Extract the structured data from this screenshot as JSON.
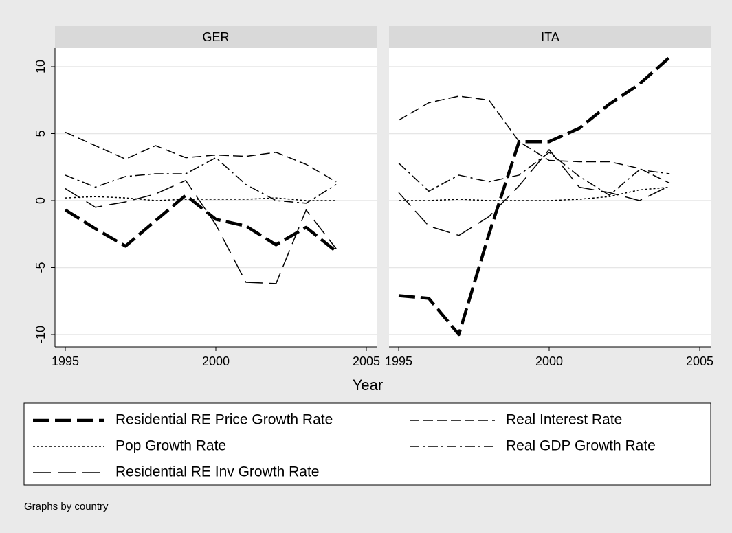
{
  "chart_data": [
    {
      "type": "line",
      "title": "GER",
      "x_label": "Year",
      "note": "Graphs by country",
      "x": [
        1995,
        1996,
        1997,
        1998,
        1999,
        2000,
        2001,
        2002,
        2003,
        2004
      ],
      "xlim": [
        1995,
        2005
      ],
      "xticks": [
        1995,
        2000,
        2005
      ],
      "ylim": [
        -10,
        10
      ],
      "yticks": [
        -10,
        -5,
        0,
        5,
        10
      ],
      "grid": true,
      "series": [
        {
          "name": "Residential RE Price Growth Rate",
          "color": "#000000",
          "values": [
            -0.7,
            -2.1,
            -3.4,
            -1.5,
            0.4,
            -1.4,
            -1.9,
            -3.3,
            -2.0,
            -3.8
          ]
        },
        {
          "name": "Real Interest Rate",
          "color": "#000000",
          "values": [
            5.1,
            4.1,
            3.1,
            4.1,
            3.2,
            3.4,
            3.3,
            3.6,
            2.7,
            1.4
          ]
        },
        {
          "name": "Pop Growth Rate",
          "color": "#000000",
          "values": [
            0.2,
            0.3,
            0.2,
            0.0,
            0.1,
            0.1,
            0.1,
            0.2,
            0.0,
            0.0
          ]
        },
        {
          "name": "Real GDP Growth Rate",
          "color": "#000000",
          "values": [
            1.9,
            1.0,
            1.8,
            2.0,
            2.0,
            3.2,
            1.2,
            0.0,
            -0.2,
            1.2
          ]
        },
        {
          "name": "Residential RE Inv Growth Rate",
          "color": "#000000",
          "values": [
            0.9,
            -0.5,
            -0.1,
            0.5,
            1.5,
            -1.8,
            -6.1,
            -6.2,
            -0.7,
            -3.6
          ]
        }
      ]
    },
    {
      "type": "line",
      "title": "ITA",
      "x": [
        1995,
        1996,
        1997,
        1998,
        1999,
        2000,
        2001,
        2002,
        2003,
        2004
      ],
      "xlim": [
        1995,
        2005
      ],
      "xticks": [
        1995,
        2000,
        2005
      ],
      "ylim": [
        -10,
        10
      ],
      "yticks": [
        -10,
        -5,
        0,
        5,
        10
      ],
      "grid": true,
      "series": [
        {
          "values": [
            -7.1,
            -7.3,
            -10.0,
            -2.5,
            4.4,
            4.4,
            5.4,
            7.2,
            8.7,
            10.7
          ]
        },
        {
          "values": [
            6.0,
            7.3,
            7.8,
            7.5,
            4.4,
            3.0,
            2.9,
            2.9,
            2.4,
            1.3
          ]
        },
        {
          "values": [
            0.0,
            0.0,
            0.1,
            0.0,
            0.0,
            0.0,
            0.1,
            0.3,
            0.8,
            1.0
          ]
        },
        {
          "values": [
            2.8,
            0.7,
            1.9,
            1.4,
            1.9,
            3.6,
            1.8,
            0.4,
            2.3,
            2.0
          ]
        },
        {
          "values": [
            0.6,
            -1.9,
            -2.6,
            -1.2,
            1.1,
            3.8,
            1.0,
            0.6,
            0.0,
            1.1
          ]
        }
      ]
    }
  ]
}
